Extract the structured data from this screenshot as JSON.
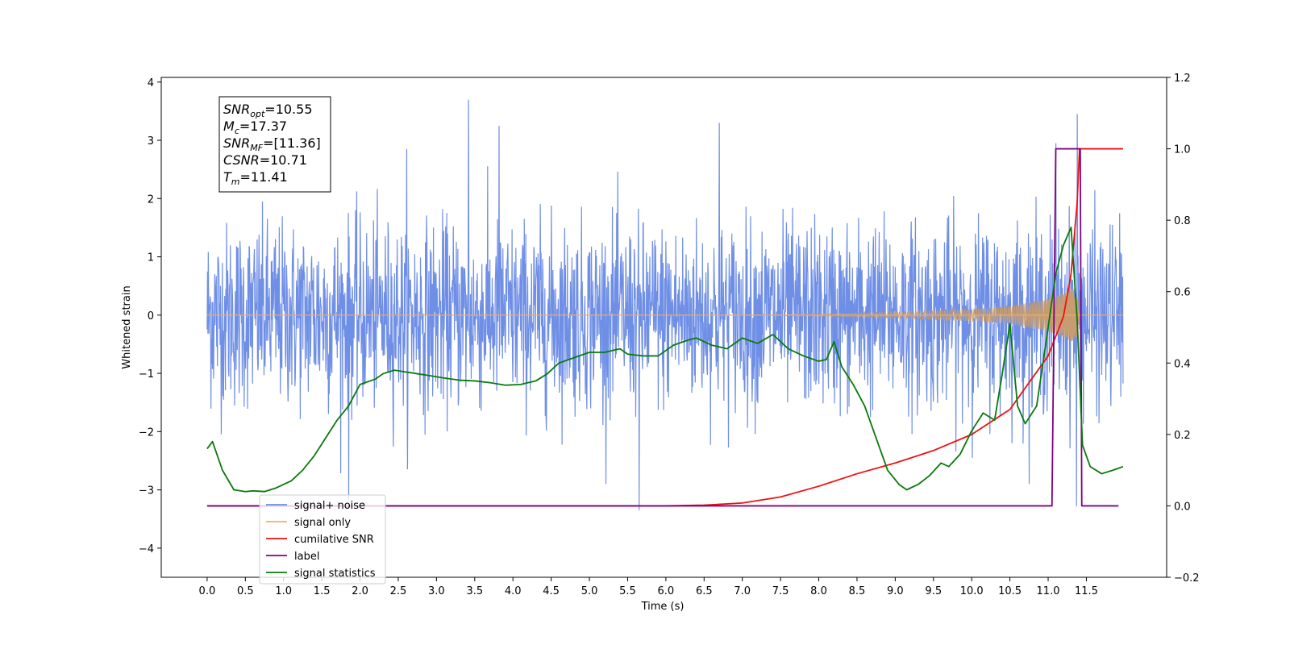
{
  "chart_data": {
    "type": "line",
    "xlabel": "Time (s)",
    "ylabel": "Whitened strain",
    "xlim": [
      -0.6,
      12.55
    ],
    "ylim": [
      -4.5,
      4.08
    ],
    "y2lim": [
      -0.2,
      1.2
    ],
    "x_ticks": [
      "0.0",
      "0.5",
      "1.0",
      "1.5",
      "2.0",
      "2.5",
      "3.0",
      "3.5",
      "4.0",
      "4.5",
      "5.0",
      "5.5",
      "6.0",
      "6.5",
      "7.0",
      "7.5",
      "8.0",
      "8.5",
      "9.0",
      "9.5",
      "10.0",
      "10.5",
      "11.0",
      "11.5"
    ],
    "y_ticks": [
      "4",
      "3",
      "2",
      "1",
      "0",
      "−1",
      "−2",
      "−3",
      "−4"
    ],
    "y2_ticks": [
      "1.2",
      "1.0",
      "0.8",
      "0.6",
      "0.4",
      "0.2",
      "0.0",
      "−0.2"
    ],
    "annotation": [
      {
        "name": "SNR",
        "sub": "opt",
        "value": "=10.55"
      },
      {
        "name": "M",
        "sub": "c",
        "value": "=17.37"
      },
      {
        "name": "SNR",
        "sub": "MF",
        "value": "=[11.36]"
      },
      {
        "name": "CSNR",
        "sub": "",
        "value": "=10.71"
      },
      {
        "name": "T",
        "sub": "m",
        "value": "=11.41"
      }
    ],
    "legend_position": "lower-left",
    "colors": {
      "signal_noise": "#6f8fe6",
      "signal_only": "#f0b06a",
      "signal_only_fill": "#c79c70",
      "cumulative_snr": "#ee1111",
      "label": "#800080",
      "signal_statistics": "#0a7a0a"
    },
    "series": [
      {
        "name": "signal+ noise",
        "legend": "signal+ noise",
        "axis": "left",
        "description_values": "noise-like oscillation about 0",
        "envelope_x": [
          0.0,
          11.98
        ],
        "envelope_y": [
          -2.0,
          2.1
        ],
        "spikes": [
          [
            3.42,
            3.7
          ],
          [
            5.65,
            -3.35
          ],
          [
            11.38,
            3.45
          ],
          [
            11.37,
            -3.28
          ],
          [
            1.85,
            -3.2
          ],
          [
            6.7,
            3.3
          ],
          [
            3.82,
            3.25
          ],
          [
            2.61,
            2.85
          ],
          [
            11.1,
            2.95
          ]
        ]
      },
      {
        "name": "signal only",
        "legend": "signal only",
        "axis": "left",
        "x": [
          0.0,
          7.0,
          8.0,
          9.0,
          10.0,
          10.5,
          11.0,
          11.2,
          11.3,
          11.38,
          11.41,
          11.98
        ],
        "y": [
          0.0,
          0.0,
          0.02,
          0.05,
          0.1,
          0.15,
          0.28,
          0.38,
          0.45,
          0.4,
          0.0,
          0.0
        ]
      },
      {
        "name": "cumilative SNR",
        "legend": "cumilative SNR",
        "axis": "right",
        "x": [
          0.0,
          6.0,
          6.5,
          7.0,
          7.5,
          8.0,
          8.5,
          9.0,
          9.5,
          10.0,
          10.5,
          11.0,
          11.2,
          11.3,
          11.38,
          11.41,
          11.98
        ],
        "y": [
          0.0,
          0.0,
          0.002,
          0.008,
          0.025,
          0.055,
          0.09,
          0.12,
          0.155,
          0.2,
          0.27,
          0.42,
          0.53,
          0.65,
          0.85,
          1.0,
          1.0
        ]
      },
      {
        "name": "label",
        "legend": "label",
        "axis": "right",
        "x": [
          0.0,
          11.05,
          11.1,
          11.42,
          11.44,
          11.92
        ],
        "y": [
          0.0,
          0.0,
          1.0,
          1.0,
          0.0,
          0.0
        ]
      },
      {
        "name": "signal statistics",
        "legend": "signal statistics",
        "axis": "right",
        "x": [
          0.0,
          0.07,
          0.2,
          0.35,
          0.5,
          0.6,
          0.75,
          0.9,
          1.0,
          1.1,
          1.25,
          1.4,
          1.55,
          1.7,
          1.85,
          1.9,
          2.0,
          2.2,
          2.3,
          2.45,
          2.6,
          2.75,
          2.9,
          3.1,
          3.3,
          3.5,
          3.7,
          3.9,
          4.1,
          4.3,
          4.45,
          4.6,
          4.8,
          5.0,
          5.2,
          5.4,
          5.5,
          5.7,
          5.9,
          6.1,
          6.3,
          6.4,
          6.6,
          6.8,
          7.0,
          7.2,
          7.4,
          7.6,
          7.8,
          8.0,
          8.1,
          8.2,
          8.3,
          8.45,
          8.6,
          8.75,
          8.9,
          9.05,
          9.15,
          9.3,
          9.45,
          9.6,
          9.7,
          9.85,
          10.0,
          10.15,
          10.3,
          10.4,
          10.5,
          10.6,
          10.7,
          10.85,
          11.0,
          11.1,
          11.2,
          11.3,
          11.38,
          11.45,
          11.55,
          11.7,
          11.85,
          11.98
        ],
        "y": [
          0.16,
          0.18,
          0.1,
          0.045,
          0.04,
          0.042,
          0.04,
          0.05,
          0.06,
          0.07,
          0.1,
          0.14,
          0.19,
          0.24,
          0.28,
          0.3,
          0.34,
          0.355,
          0.37,
          0.38,
          0.375,
          0.37,
          0.365,
          0.358,
          0.352,
          0.35,
          0.345,
          0.338,
          0.34,
          0.35,
          0.37,
          0.4,
          0.415,
          0.43,
          0.43,
          0.44,
          0.425,
          0.42,
          0.42,
          0.45,
          0.465,
          0.47,
          0.45,
          0.44,
          0.47,
          0.455,
          0.48,
          0.44,
          0.42,
          0.405,
          0.41,
          0.46,
          0.39,
          0.34,
          0.28,
          0.19,
          0.1,
          0.06,
          0.045,
          0.06,
          0.085,
          0.12,
          0.11,
          0.145,
          0.21,
          0.26,
          0.24,
          0.37,
          0.51,
          0.28,
          0.23,
          0.28,
          0.5,
          0.65,
          0.73,
          0.78,
          0.52,
          0.17,
          0.11,
          0.09,
          0.1,
          0.11
        ]
      }
    ]
  }
}
